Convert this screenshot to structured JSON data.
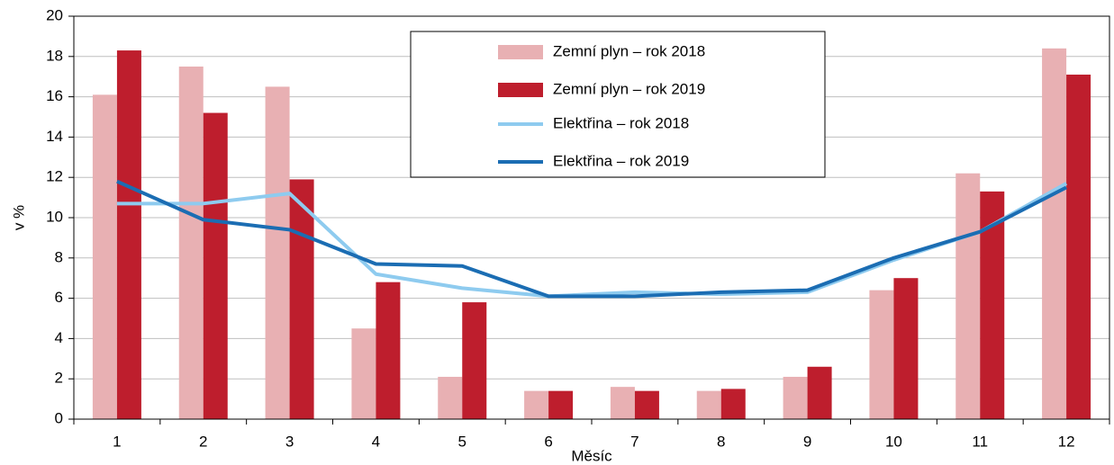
{
  "chart_data": {
    "type": "bar",
    "xlabel": "Měsíc",
    "ylabel": "v %",
    "categories": [
      "1",
      "2",
      "3",
      "4",
      "5",
      "6",
      "7",
      "8",
      "9",
      "10",
      "11",
      "12"
    ],
    "series": [
      {
        "name": "Zemní plyn – rok 2018",
        "type": "bar",
        "color": "#e8b0b3",
        "values": [
          16.1,
          17.5,
          16.5,
          4.5,
          2.1,
          1.4,
          1.6,
          1.4,
          2.1,
          6.4,
          12.2,
          18.4
        ]
      },
      {
        "name": "Zemní plyn – rok 2019",
        "type": "bar",
        "color": "#be1e2d",
        "values": [
          18.3,
          15.2,
          11.9,
          6.8,
          5.8,
          1.4,
          1.4,
          1.5,
          2.6,
          7.0,
          11.3,
          17.1
        ]
      },
      {
        "name": "Elektřina – rok 2018",
        "type": "line",
        "color": "#8ecbef",
        "values": [
          10.7,
          10.7,
          11.2,
          7.2,
          6.5,
          6.1,
          6.3,
          6.2,
          6.3,
          7.9,
          9.3,
          11.7
        ]
      },
      {
        "name": "Elektřina – rok 2019",
        "type": "line",
        "color": "#1b6db3",
        "values": [
          11.8,
          9.9,
          9.4,
          7.7,
          7.6,
          6.1,
          6.1,
          6.3,
          6.4,
          8.0,
          9.3,
          11.5
        ]
      }
    ],
    "ylim": [
      0,
      20
    ],
    "yticks": [
      0,
      2,
      4,
      6,
      8,
      10,
      12,
      14,
      16,
      18,
      20
    ],
    "grid": true
  }
}
